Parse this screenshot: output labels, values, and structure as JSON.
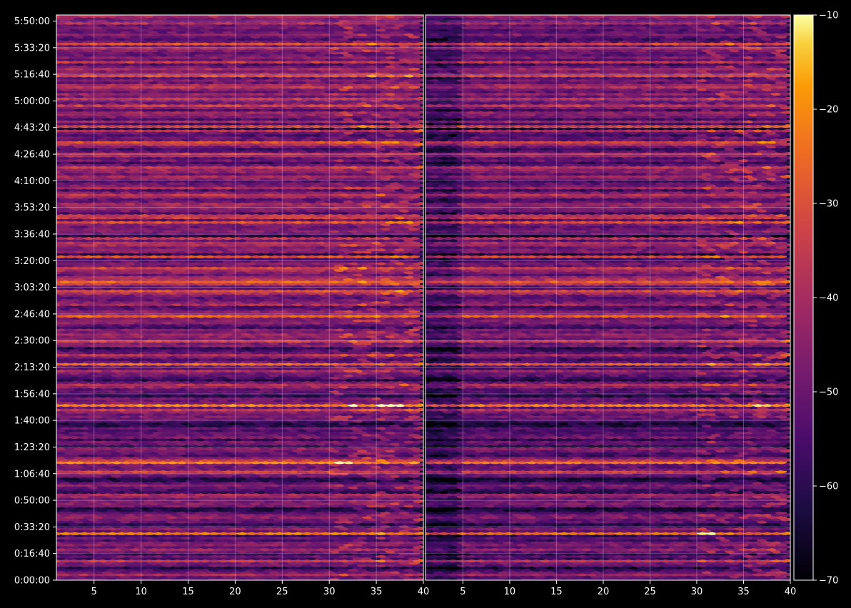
{
  "chart_data": {
    "type": "heatmap",
    "title": "",
    "colormap": "inferno",
    "background": "#000000",
    "grid": true,
    "panels": [
      {
        "name": "left",
        "x_ticks": [
          "5",
          "10",
          "15",
          "20",
          "25",
          "30",
          "35",
          "40"
        ],
        "x_tick_values": [
          5,
          10,
          15,
          20,
          25,
          30,
          35,
          40
        ],
        "xlim": [
          1,
          40
        ]
      },
      {
        "name": "right",
        "x_ticks": [
          "5",
          "10",
          "15",
          "20",
          "25",
          "30",
          "35",
          "40"
        ],
        "x_tick_values": [
          5,
          10,
          15,
          20,
          25,
          30,
          35,
          40
        ],
        "xlim": [
          1,
          40
        ]
      }
    ],
    "y_ticks": [
      "0:00:00",
      "0:16:40",
      "0:33:20",
      "0:50:00",
      "1:06:40",
      "1:23:20",
      "1:40:00",
      "1:56:40",
      "2:13:20",
      "2:30:00",
      "2:46:40",
      "3:03:20",
      "3:20:00",
      "3:36:40",
      "3:53:20",
      "4:10:00",
      "4:26:40",
      "4:43:20",
      "5:00:00",
      "5:16:40",
      "5:33:20",
      "5:50:00"
    ],
    "ylim": [
      "0:00:00",
      "5:50:00"
    ],
    "colorbar": {
      "ticks": [
        "−70",
        "−60",
        "−50",
        "−40",
        "−30",
        "−20",
        "−10"
      ],
      "tick_values": [
        -70,
        -60,
        -50,
        -40,
        -30,
        -20,
        -10
      ],
      "range": [
        -70,
        -10
      ]
    },
    "value_range": [
      -70,
      -10
    ],
    "row_levels": [
      -52,
      -50,
      -40,
      -48,
      -55,
      -62,
      -50,
      -47,
      -35,
      -55,
      -50,
      -60,
      -48,
      -42,
      -50,
      -45,
      -47,
      -55,
      -50,
      -57,
      -22,
      -50,
      -45,
      -55,
      -60,
      -50,
      -49,
      -44,
      -46,
      -52,
      -60,
      -62,
      -48,
      -45,
      -47,
      -50,
      -43,
      -40,
      -58,
      -55,
      -50,
      -45,
      -52,
      -60,
      -62,
      -50,
      -47,
      -33,
      -48,
      -50,
      -48,
      -22,
      -35,
      -45,
      -55,
      -52,
      -48,
      -44,
      -60,
      -50,
      -48,
      -58,
      -47,
      -50,
      -52,
      -55,
      -50,
      -60,
      -62,
      -55,
      -50,
      -47,
      -50,
      -45,
      -35,
      -50,
      -20,
      -45,
      -50,
      -48,
      -60,
      -58,
      -50,
      -52,
      -42,
      -38,
      -48,
      -60,
      -55,
      -50,
      -48,
      -40,
      -52,
      -50,
      -25,
      -50,
      -55,
      -48,
      -38,
      -50,
      -55,
      -60,
      -45,
      -47,
      -32,
      -48,
      -44,
      -42,
      -48,
      -45,
      -56,
      -52,
      -45,
      -45,
      -48,
      -26,
      -47,
      -44,
      -52,
      -54,
      -40,
      -45,
      -50,
      -52,
      -48,
      -38,
      -30,
      -52,
      -50,
      -35,
      -26,
      -36,
      -40,
      -50,
      -45,
      -40,
      -32,
      -48,
      -46,
      -52,
      -55,
      -30,
      -60,
      -45,
      -45,
      -48,
      -40,
      -38,
      -50,
      -36,
      -62,
      -52,
      -45,
      -48,
      -50,
      -46,
      -30,
      -52,
      -34,
      -35,
      -55,
      -48,
      -44,
      -42,
      -40,
      -50,
      -52,
      -42,
      -36,
      -46,
      -55,
      -40,
      -48,
      -50,
      -56,
      -45,
      -40,
      -50,
      -44,
      -42,
      -35,
      -50,
      -56,
      -48,
      -52,
      -40,
      -38,
      -52,
      -56,
      -48,
      -38,
      -30,
      -50,
      -50,
      -55,
      -50,
      -38,
      -62,
      -32,
      -55,
      -40,
      -55,
      -48,
      -44,
      -42,
      -55,
      -45,
      -34,
      -48,
      -50,
      -35,
      -48,
      -42,
      -50,
      -46,
      -36,
      -40,
      -50,
      -46,
      -52,
      -30,
      -42,
      -46,
      -40,
      -48,
      -55,
      -35,
      -50,
      -45,
      -50,
      -50,
      -46,
      -40,
      -48,
      -30,
      -50,
      -55,
      -50,
      -44,
      -50,
      -52,
      -48,
      -50,
      -38,
      -50,
      -46,
      -40
    ]
  }
}
